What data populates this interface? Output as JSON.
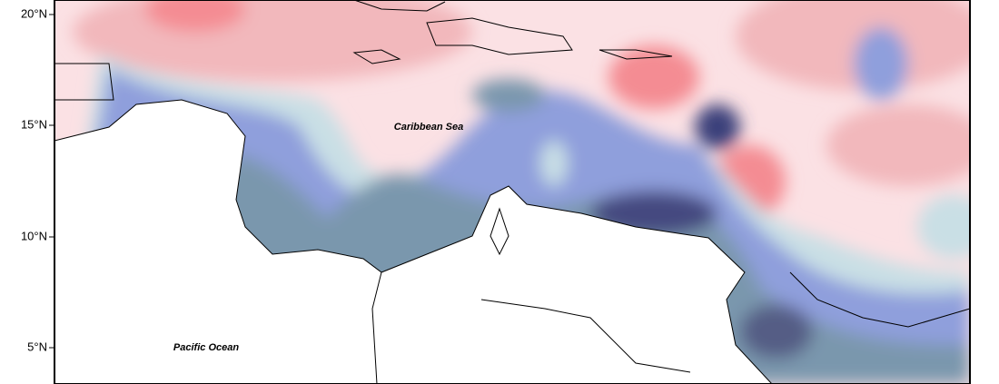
{
  "map": {
    "lat_labels": [
      "20°N",
      "15°N",
      "10°N",
      "5°N"
    ],
    "places": [
      "Caribbean Sea",
      "Pacific Ocean"
    ]
  }
}
